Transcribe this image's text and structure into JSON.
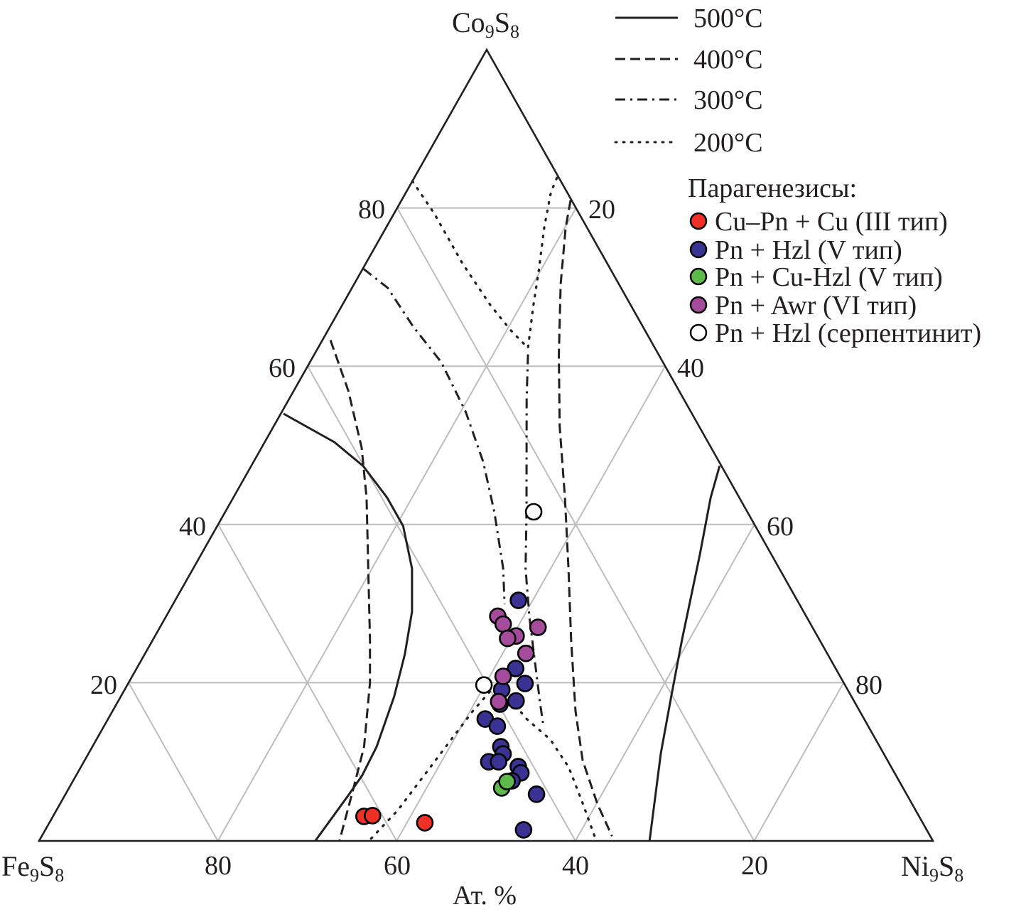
{
  "chart_data": {
    "type": "scatter",
    "subtype": "ternary",
    "title": "",
    "axis_unit_label": "Ат. %",
    "vertices": {
      "top": {
        "label": "Co",
        "sub1": "9",
        "label2": "S",
        "sub2": "8"
      },
      "left": {
        "label": "Fe",
        "sub1": "9",
        "label2": "S",
        "sub2": "8"
      },
      "right": {
        "label": "Ni",
        "sub1": "9",
        "label2": "S",
        "sub2": "8"
      }
    },
    "components": [
      "Fe9S8",
      "Co9S8",
      "Ni9S8"
    ],
    "grid_step": 20,
    "grid": true,
    "ticks": {
      "left_side_co": [
        "80",
        "60",
        "40",
        "20"
      ],
      "right_side_ni": [
        "20",
        "40",
        "60",
        "80"
      ],
      "bottom_fe": [
        "80",
        "60",
        "40",
        "20"
      ]
    },
    "legend_lines": {
      "placement": "top-right",
      "items": [
        {
          "label": "500°C",
          "style": "solid"
        },
        {
          "label": "400°C",
          "style": "dashed"
        },
        {
          "label": "300°C",
          "style": "dashdot"
        },
        {
          "label": "200°C",
          "style": "dotted"
        }
      ]
    },
    "legend_points": {
      "title": "Парагенезисы:",
      "placement": "right",
      "items": [
        {
          "key": "red",
          "label": "Cu–Pn + Cu (III тип)",
          "color": "#ee3124"
        },
        {
          "key": "blue",
          "label": "Pn + Hzl (V тип)",
          "color": "#3a3393"
        },
        {
          "key": "green",
          "label": "Pn + Cu-Hzl (V тип)",
          "color": "#5cb94a"
        },
        {
          "key": "purple",
          "label": "Pn + Awr (VI тип)",
          "color": "#a44c9b"
        },
        {
          "key": "open",
          "label": "Pn + Hzl (серпентинит)",
          "color": "#ffffff"
        }
      ]
    },
    "series": [
      {
        "name": "Cu–Pn + Cu (III тип)",
        "key": "red",
        "points_co_ni": [
          [
            3.1,
            34.8
          ],
          [
            3.2,
            35.7
          ],
          [
            2.3,
            42.0
          ]
        ]
      },
      {
        "name": "Pn + Hzl (V тип)",
        "key": "blue",
        "points_co_ni": [
          [
            30.4,
            38.4
          ],
          [
            21.8,
            42.4
          ],
          [
            19.9,
            44.4
          ],
          [
            19.1,
            42.2
          ],
          [
            17.7,
            44.5
          ],
          [
            17.3,
            42.9
          ],
          [
            15.4,
            42.2
          ],
          [
            14.5,
            44.0
          ],
          [
            11.9,
            45.7
          ],
          [
            11.0,
            46.4
          ],
          [
            10.0,
            45.3
          ],
          [
            10.0,
            46.4
          ],
          [
            9.4,
            48.9
          ],
          [
            8.6,
            49.6
          ],
          [
            7.6,
            49.1
          ],
          [
            5.9,
            52.7
          ],
          [
            1.4,
            53.5
          ]
        ]
      },
      {
        "name": "Pn + Cu-Hzl (V тип)",
        "key": "green",
        "points_co_ni": [
          [
            6.7,
            48.4
          ],
          [
            7.5,
            48.6
          ]
        ]
      },
      {
        "name": "Pn + Awr (VI тип)",
        "key": "purple",
        "points_co_ni": [
          [
            28.4,
            37.1
          ],
          [
            27.4,
            38.2
          ],
          [
            27.0,
            42.3
          ],
          [
            25.9,
            40.4
          ],
          [
            25.6,
            39.6
          ],
          [
            23.7,
            42.6
          ],
          [
            20.8,
            41.5
          ],
          [
            17.6,
            42.6
          ]
        ]
      },
      {
        "name": "Pn + Hzl (серпентинит)",
        "key": "open",
        "points_co_ni": [
          [
            41.6,
            34.5
          ],
          [
            19.7,
            39.9
          ]
        ]
      }
    ],
    "isotherms": [
      {
        "temp": "500°C",
        "style": "solid",
        "segments": [
          [
            [
              54.0,
              0.3
            ],
            [
              50.4,
              7.8
            ],
            [
              47.4,
              12.5
            ],
            [
              43.4,
              17.2
            ],
            [
              39.8,
              20.8
            ],
            [
              34.4,
              24.5
            ],
            [
              29.0,
              27.2
            ],
            [
              23.6,
              29.1
            ],
            [
              18.2,
              30.6
            ],
            [
              11.9,
              31.8
            ],
            [
              8.3,
              32.0
            ],
            [
              5.7,
              31.7
            ],
            [
              0,
              30.9
            ]
          ],
          [
            [
              47.4,
              52.4
            ],
            [
              43.4,
              53.4
            ],
            [
              36.2,
              55.8
            ],
            [
              25.4,
              59.2
            ],
            [
              18.2,
              61.6
            ],
            [
              11.1,
              64.0
            ],
            [
              0,
              68.3
            ]
          ]
        ]
      },
      {
        "temp": "400°C",
        "style": "dashed",
        "segments": [
          [
            [
              63.3,
              0.9
            ],
            [
              56.9,
              6.1
            ],
            [
              49.7,
              11.2
            ],
            [
              43.4,
              14.9
            ],
            [
              34.4,
              19.6
            ],
            [
              25.4,
              24.3
            ],
            [
              20.0,
              27.0
            ],
            [
              11.9,
              30.4
            ],
            [
              5.7,
              32.1
            ],
            [
              0,
              33.6
            ]
          ],
          [
            [
              81.0,
              18.9
            ],
            [
              77.5,
              20.1
            ],
            [
              70.4,
              23.1
            ],
            [
              61.4,
              27.4
            ],
            [
              52.4,
              32.0
            ],
            [
              43.4,
              37.1
            ],
            [
              34.4,
              42.0
            ],
            [
              25.4,
              46.8
            ],
            [
              16.4,
              51.8
            ],
            [
              10.2,
              55.7
            ],
            [
              4.7,
              60.1
            ],
            [
              0.6,
              63.8
            ]
          ]
        ]
      },
      {
        "temp": "300°C",
        "style": "dashdot",
        "segments": [
          [
            [
              72.3,
              0.1
            ],
            [
              69.9,
              4.0
            ],
            [
              65.0,
              9.3
            ],
            [
              60.5,
              14.7
            ],
            [
              54.2,
              20.6
            ],
            [
              47.9,
              25.7
            ],
            [
              41.6,
              30.1
            ],
            [
              34.4,
              34.7
            ],
            [
              29.9,
              37.1
            ]
          ],
          [
            [
              61.5,
              23.9
            ],
            [
              56.0,
              26.5
            ],
            [
              48.8,
              30.1
            ],
            [
              41.6,
              33.7
            ],
            [
              34.4,
              37.2
            ],
            [
              28.1,
              40.8
            ],
            [
              22.7,
              44.1
            ],
            [
              17.3,
              47.4
            ],
            [
              14.6,
              49.1
            ]
          ]
        ]
      },
      {
        "temp": "200°C",
        "style": "dotted",
        "segments": [
          [
            [
              83.4,
              0.0
            ],
            [
              79.3,
              4.5
            ],
            [
              73.0,
              10.8
            ],
            [
              67.7,
              16.6
            ],
            [
              64.5,
              20.5
            ],
            [
              62.3,
              23.5
            ],
            [
              67.7,
              21.4
            ],
            [
              72.1,
              19.8
            ],
            [
              77.5,
              17.7
            ],
            [
              82.0,
              16.2
            ],
            [
              84.3,
              15.9
            ]
          ],
          [
            [
              0.3,
              37.0
            ],
            [
              3.9,
              38.2
            ],
            [
              11.1,
              39.4
            ],
            [
              16.4,
              40.3
            ],
            [
              20.0,
              41.3
            ],
            [
              15.5,
              46.7
            ],
            [
              12.8,
              50.8
            ],
            [
              9.3,
              54.6
            ],
            [
              4.8,
              58.4
            ],
            [
              0.3,
              62.1
            ]
          ]
        ]
      }
    ]
  }
}
